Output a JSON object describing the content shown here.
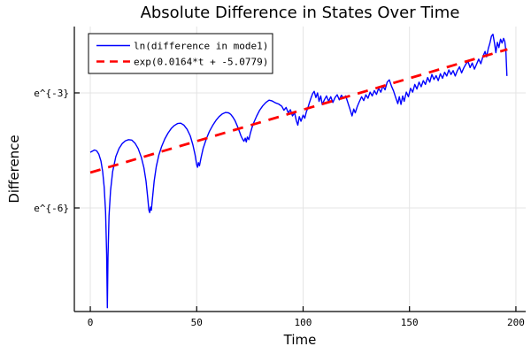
{
  "figure": {
    "background": "#ffffff"
  },
  "chart_data": {
    "type": "line",
    "title": "Absolute Difference in States Over Time",
    "xlabel": "Time",
    "ylabel": "Difference",
    "yscale": "ln",
    "grid": true,
    "xlim": [
      -7.5,
      204.6
    ],
    "ylim": [
      -8.7,
      -1.27
    ],
    "x_ticks": [
      {
        "value": 0,
        "label": "0"
      },
      {
        "value": 50,
        "label": "50"
      },
      {
        "value": 100,
        "label": "100"
      },
      {
        "value": 150,
        "label": "150"
      },
      {
        "value": 200,
        "label": "200"
      }
    ],
    "y_ticks": [
      {
        "value": -3,
        "label": "e^{-3}"
      },
      {
        "value": -6,
        "label": "e^{-6}"
      }
    ],
    "colors": {
      "series1": "#0000ff",
      "series2": "#ff0000",
      "grid": "#e4e4e4",
      "spine": "#000000",
      "text": "#000000",
      "legend_bg": "#ffffff",
      "legend_border": "#000000"
    },
    "legend": {
      "position": "top-left",
      "entries": [
        {
          "label": "ln(difference in mode1)",
          "color": "#0000ff",
          "style": "solid"
        },
        {
          "label": "exp(0.0164*t + -5.0779)",
          "color": "#ff0000",
          "style": "dashed"
        }
      ]
    },
    "series": [
      {
        "name": "ln(difference in mode1)",
        "color": "#0000ff",
        "style": "solid",
        "points": [
          [
            0,
            -4.55
          ],
          [
            1,
            -4.52
          ],
          [
            2,
            -4.49
          ],
          [
            3,
            -4.51
          ],
          [
            4,
            -4.6
          ],
          [
            5,
            -4.78
          ],
          [
            5.8,
            -5.05
          ],
          [
            6.5,
            -5.45
          ],
          [
            7.2,
            -6.1
          ],
          [
            7.7,
            -7.2
          ],
          [
            8,
            -8.6
          ],
          [
            8.3,
            -7.3
          ],
          [
            8.8,
            -6.2
          ],
          [
            9.5,
            -5.55
          ],
          [
            10.5,
            -5.05
          ],
          [
            12,
            -4.66
          ],
          [
            13.5,
            -4.45
          ],
          [
            15,
            -4.32
          ],
          [
            16.5,
            -4.25
          ],
          [
            18,
            -4.22
          ],
          [
            19.5,
            -4.23
          ],
          [
            21,
            -4.31
          ],
          [
            22.5,
            -4.45
          ],
          [
            24,
            -4.68
          ],
          [
            25.2,
            -4.95
          ],
          [
            26.2,
            -5.3
          ],
          [
            27,
            -5.75
          ],
          [
            27.5,
            -6.05
          ],
          [
            27.9,
            -6.12
          ],
          [
            28.3,
            -5.98
          ],
          [
            28.7,
            -6.06
          ],
          [
            29.3,
            -5.7
          ],
          [
            30,
            -5.3
          ],
          [
            31,
            -4.92
          ],
          [
            32.2,
            -4.62
          ],
          [
            33.5,
            -4.4
          ],
          [
            35,
            -4.2
          ],
          [
            36.5,
            -4.05
          ],
          [
            38,
            -3.93
          ],
          [
            39.5,
            -3.85
          ],
          [
            41,
            -3.8
          ],
          [
            42.5,
            -3.79
          ],
          [
            44,
            -3.84
          ],
          [
            45.5,
            -3.95
          ],
          [
            47,
            -4.12
          ],
          [
            48.2,
            -4.35
          ],
          [
            49.2,
            -4.6
          ],
          [
            50,
            -4.88
          ],
          [
            50.4,
            -4.94
          ],
          [
            50.8,
            -4.82
          ],
          [
            51.3,
            -4.9
          ],
          [
            52,
            -4.7
          ],
          [
            53,
            -4.45
          ],
          [
            54.5,
            -4.2
          ],
          [
            56,
            -4.0
          ],
          [
            57.5,
            -3.85
          ],
          [
            59,
            -3.72
          ],
          [
            60.5,
            -3.62
          ],
          [
            62,
            -3.55
          ],
          [
            63.5,
            -3.51
          ],
          [
            65,
            -3.52
          ],
          [
            66,
            -3.56
          ],
          [
            67,
            -3.63
          ],
          [
            68,
            -3.72
          ],
          [
            69,
            -3.85
          ],
          [
            70,
            -4.0
          ],
          [
            70.8,
            -4.12
          ],
          [
            71.5,
            -4.2
          ],
          [
            72.2,
            -4.26
          ],
          [
            72.8,
            -4.18
          ],
          [
            73.3,
            -4.28
          ],
          [
            73.8,
            -4.15
          ],
          [
            74.5,
            -4.22
          ],
          [
            75.2,
            -4.05
          ],
          [
            76,
            -3.9
          ],
          [
            77,
            -3.75
          ],
          [
            78.2,
            -3.6
          ],
          [
            79.5,
            -3.46
          ],
          [
            81,
            -3.34
          ],
          [
            82.5,
            -3.25
          ],
          [
            84,
            -3.19
          ],
          [
            85.5,
            -3.21
          ],
          [
            87,
            -3.26
          ],
          [
            88.5,
            -3.29
          ],
          [
            90,
            -3.35
          ],
          [
            91,
            -3.45
          ],
          [
            92,
            -3.38
          ],
          [
            93,
            -3.52
          ],
          [
            94,
            -3.44
          ],
          [
            95,
            -3.6
          ],
          [
            96,
            -3.52
          ],
          [
            96.8,
            -3.72
          ],
          [
            97.5,
            -3.84
          ],
          [
            98.2,
            -3.62
          ],
          [
            99,
            -3.74
          ],
          [
            100,
            -3.58
          ],
          [
            100.8,
            -3.66
          ],
          [
            101.5,
            -3.5
          ],
          [
            102.3,
            -3.38
          ],
          [
            103,
            -3.25
          ],
          [
            103.8,
            -3.12
          ],
          [
            104.5,
            -3.02
          ],
          [
            105.2,
            -2.96
          ],
          [
            106,
            -3.12
          ],
          [
            106.8,
            -3.0
          ],
          [
            107.5,
            -3.22
          ],
          [
            108.3,
            -3.08
          ],
          [
            109,
            -3.3
          ],
          [
            110,
            -3.18
          ],
          [
            111,
            -3.08
          ],
          [
            112,
            -3.22
          ],
          [
            113,
            -3.1
          ],
          [
            114,
            -3.25
          ],
          [
            115,
            -3.12
          ],
          [
            116,
            -3.05
          ],
          [
            117,
            -3.18
          ],
          [
            118,
            -3.06
          ],
          [
            119,
            -3.14
          ],
          [
            120,
            -3.08
          ],
          [
            121,
            -3.25
          ],
          [
            122,
            -3.42
          ],
          [
            123,
            -3.6
          ],
          [
            123.8,
            -3.42
          ],
          [
            124.5,
            -3.52
          ],
          [
            125.5,
            -3.35
          ],
          [
            126.5,
            -3.22
          ],
          [
            127.5,
            -3.1
          ],
          [
            128.5,
            -3.2
          ],
          [
            129.5,
            -3.05
          ],
          [
            130.5,
            -3.14
          ],
          [
            131.5,
            -2.98
          ],
          [
            132.5,
            -3.08
          ],
          [
            133.5,
            -2.94
          ],
          [
            134.5,
            -3.04
          ],
          [
            135.5,
            -2.88
          ],
          [
            136.5,
            -2.98
          ],
          [
            137.5,
            -2.82
          ],
          [
            138.5,
            -2.92
          ],
          [
            139.5,
            -2.72
          ],
          [
            140.5,
            -2.66
          ],
          [
            141.5,
            -2.82
          ],
          [
            142.5,
            -2.95
          ],
          [
            143.5,
            -3.12
          ],
          [
            144.5,
            -3.28
          ],
          [
            145.2,
            -3.1
          ],
          [
            146,
            -3.3
          ],
          [
            146.8,
            -3.08
          ],
          [
            147.5,
            -3.22
          ],
          [
            148.5,
            -2.98
          ],
          [
            149.5,
            -3.1
          ],
          [
            150.5,
            -2.88
          ],
          [
            151.5,
            -2.98
          ],
          [
            152.5,
            -2.78
          ],
          [
            153.5,
            -2.9
          ],
          [
            154.5,
            -2.72
          ],
          [
            155.5,
            -2.84
          ],
          [
            156.5,
            -2.68
          ],
          [
            157.5,
            -2.78
          ],
          [
            158.5,
            -2.6
          ],
          [
            159.5,
            -2.72
          ],
          [
            160.5,
            -2.52
          ],
          [
            161.5,
            -2.65
          ],
          [
            162.5,
            -2.55
          ],
          [
            163.5,
            -2.68
          ],
          [
            164.5,
            -2.5
          ],
          [
            165.5,
            -2.62
          ],
          [
            166.5,
            -2.46
          ],
          [
            167.5,
            -2.56
          ],
          [
            168.5,
            -2.4
          ],
          [
            169.5,
            -2.52
          ],
          [
            170.5,
            -2.42
          ],
          [
            171.5,
            -2.56
          ],
          [
            172.5,
            -2.42
          ],
          [
            173.5,
            -2.32
          ],
          [
            174.5,
            -2.48
          ],
          [
            175.5,
            -2.35
          ],
          [
            176.5,
            -2.25
          ],
          [
            177.5,
            -2.18
          ],
          [
            178.5,
            -2.34
          ],
          [
            179.5,
            -2.22
          ],
          [
            180.5,
            -2.38
          ],
          [
            181.5,
            -2.25
          ],
          [
            182.5,
            -2.12
          ],
          [
            183.5,
            -2.24
          ],
          [
            184.5,
            -2.05
          ],
          [
            185.5,
            -1.92
          ],
          [
            186.2,
            -2.06
          ],
          [
            187,
            -1.85
          ],
          [
            187.8,
            -1.7
          ],
          [
            188.5,
            -1.52
          ],
          [
            189.2,
            -1.47
          ],
          [
            190,
            -1.72
          ],
          [
            190.6,
            -1.95
          ],
          [
            191.3,
            -1.68
          ],
          [
            192,
            -1.82
          ],
          [
            192.8,
            -1.6
          ],
          [
            193.5,
            -1.7
          ],
          [
            194.2,
            -1.58
          ],
          [
            194.8,
            -1.66
          ],
          [
            195.3,
            -1.9
          ],
          [
            195.8,
            -2.56
          ]
        ]
      },
      {
        "name": "exp(0.0164*t + -5.0779)",
        "color": "#ff0000",
        "style": "dashed",
        "fit": {
          "slope": 0.0164,
          "intercept": -5.0779,
          "t_range": [
            0,
            196
          ]
        }
      }
    ]
  }
}
